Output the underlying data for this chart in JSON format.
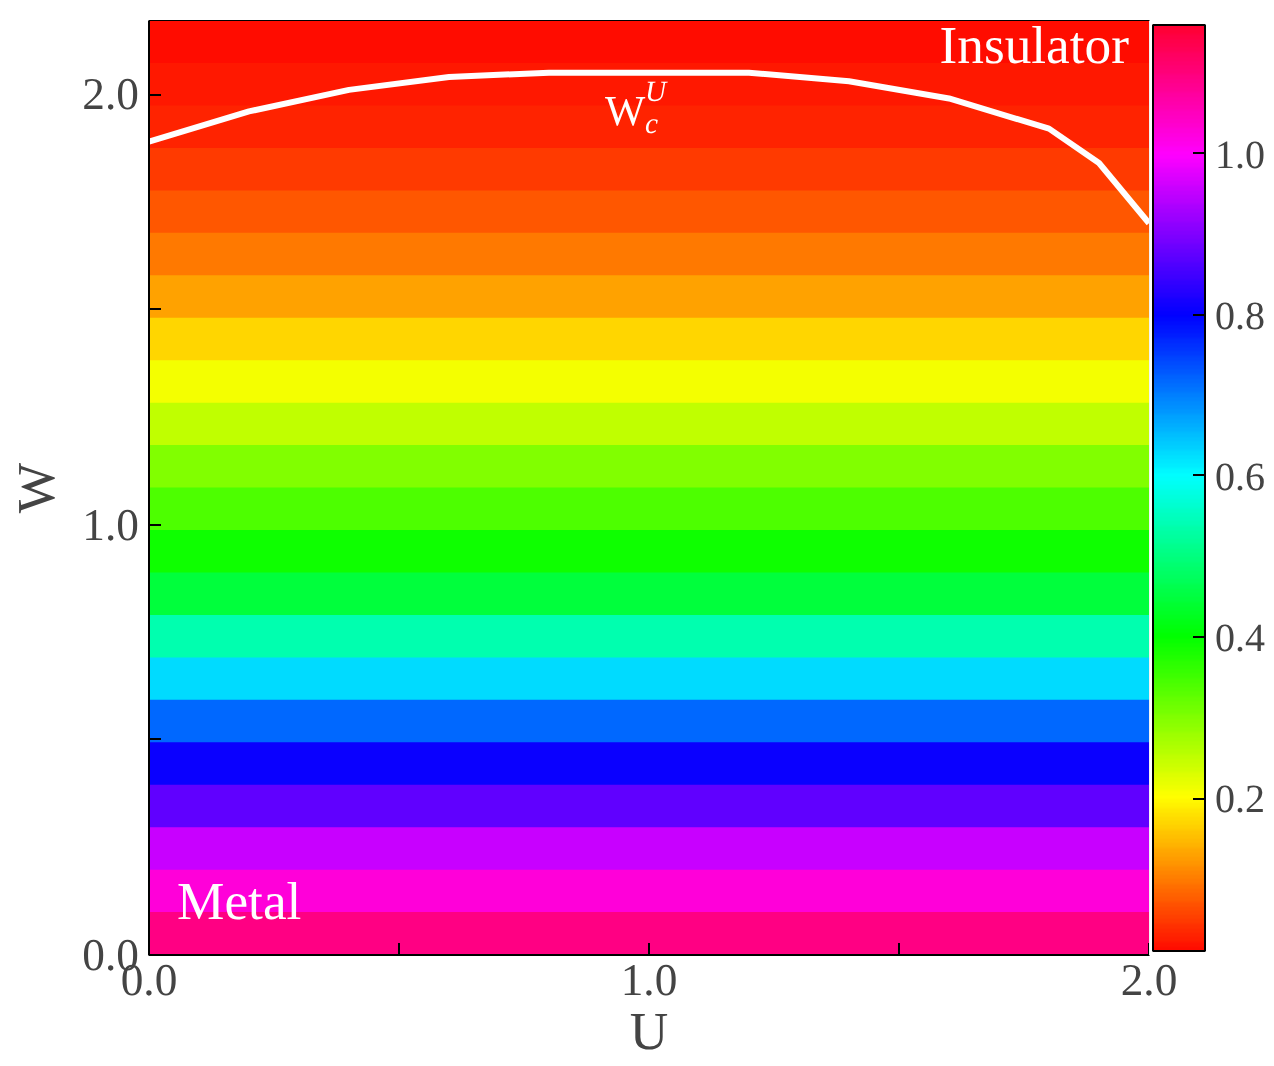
{
  "chart_data": {
    "type": "heatmap",
    "xlabel": "U",
    "ylabel": "W",
    "xlim": [
      0,
      2
    ],
    "ylim": [
      0,
      2.17
    ],
    "xticks": [
      {
        "value": 0,
        "label": "0.0"
      },
      {
        "value": 0.5,
        "label": null
      },
      {
        "value": 1,
        "label": "1.0"
      },
      {
        "value": 1.5,
        "label": null
      },
      {
        "value": 2,
        "label": "2.0"
      }
    ],
    "yticks": [
      {
        "value": 0,
        "label": "0.0"
      },
      {
        "value": 0.5,
        "label": null
      },
      {
        "value": 1,
        "label": "1.0"
      },
      {
        "value": 1.5,
        "label": null
      },
      {
        "value": 2,
        "label": "2.0"
      }
    ],
    "cells": [
      [
        0.01
      ],
      [
        0.02
      ],
      [
        0.03
      ],
      [
        0.05
      ],
      [
        0.07
      ],
      [
        0.1
      ],
      [
        0.13
      ],
      [
        0.17
      ],
      [
        0.21
      ],
      [
        0.25
      ],
      [
        0.3
      ],
      [
        0.34
      ],
      [
        0.39
      ],
      [
        0.45
      ],
      [
        0.54
      ],
      [
        0.63
      ],
      [
        0.72
      ],
      [
        0.81
      ],
      [
        0.88
      ],
      [
        0.96
      ],
      [
        1.03
      ],
      [
        1.1
      ]
    ],
    "clim": [
      0.01,
      1.16
    ],
    "cticks": [
      0.2,
      0.4,
      0.6,
      0.8,
      {
        "value": 1,
        "label": "1.0"
      }
    ],
    "series": [
      {
        "type": "line",
        "color": "#ffffff",
        "x": [
          0,
          0.2,
          0.4,
          0.6,
          0.8,
          1.0,
          1.2,
          1.4,
          1.6,
          1.8,
          1.9,
          2.0
        ],
        "values": [
          1.89,
          1.96,
          2.01,
          2.04,
          2.05,
          2.05,
          2.05,
          2.03,
          1.99,
          1.92,
          1.84,
          1.7
        ]
      }
    ],
    "annotations": [
      "Insulator",
      "Metal",
      "W$^{U}$$_{c}$"
    ]
  }
}
